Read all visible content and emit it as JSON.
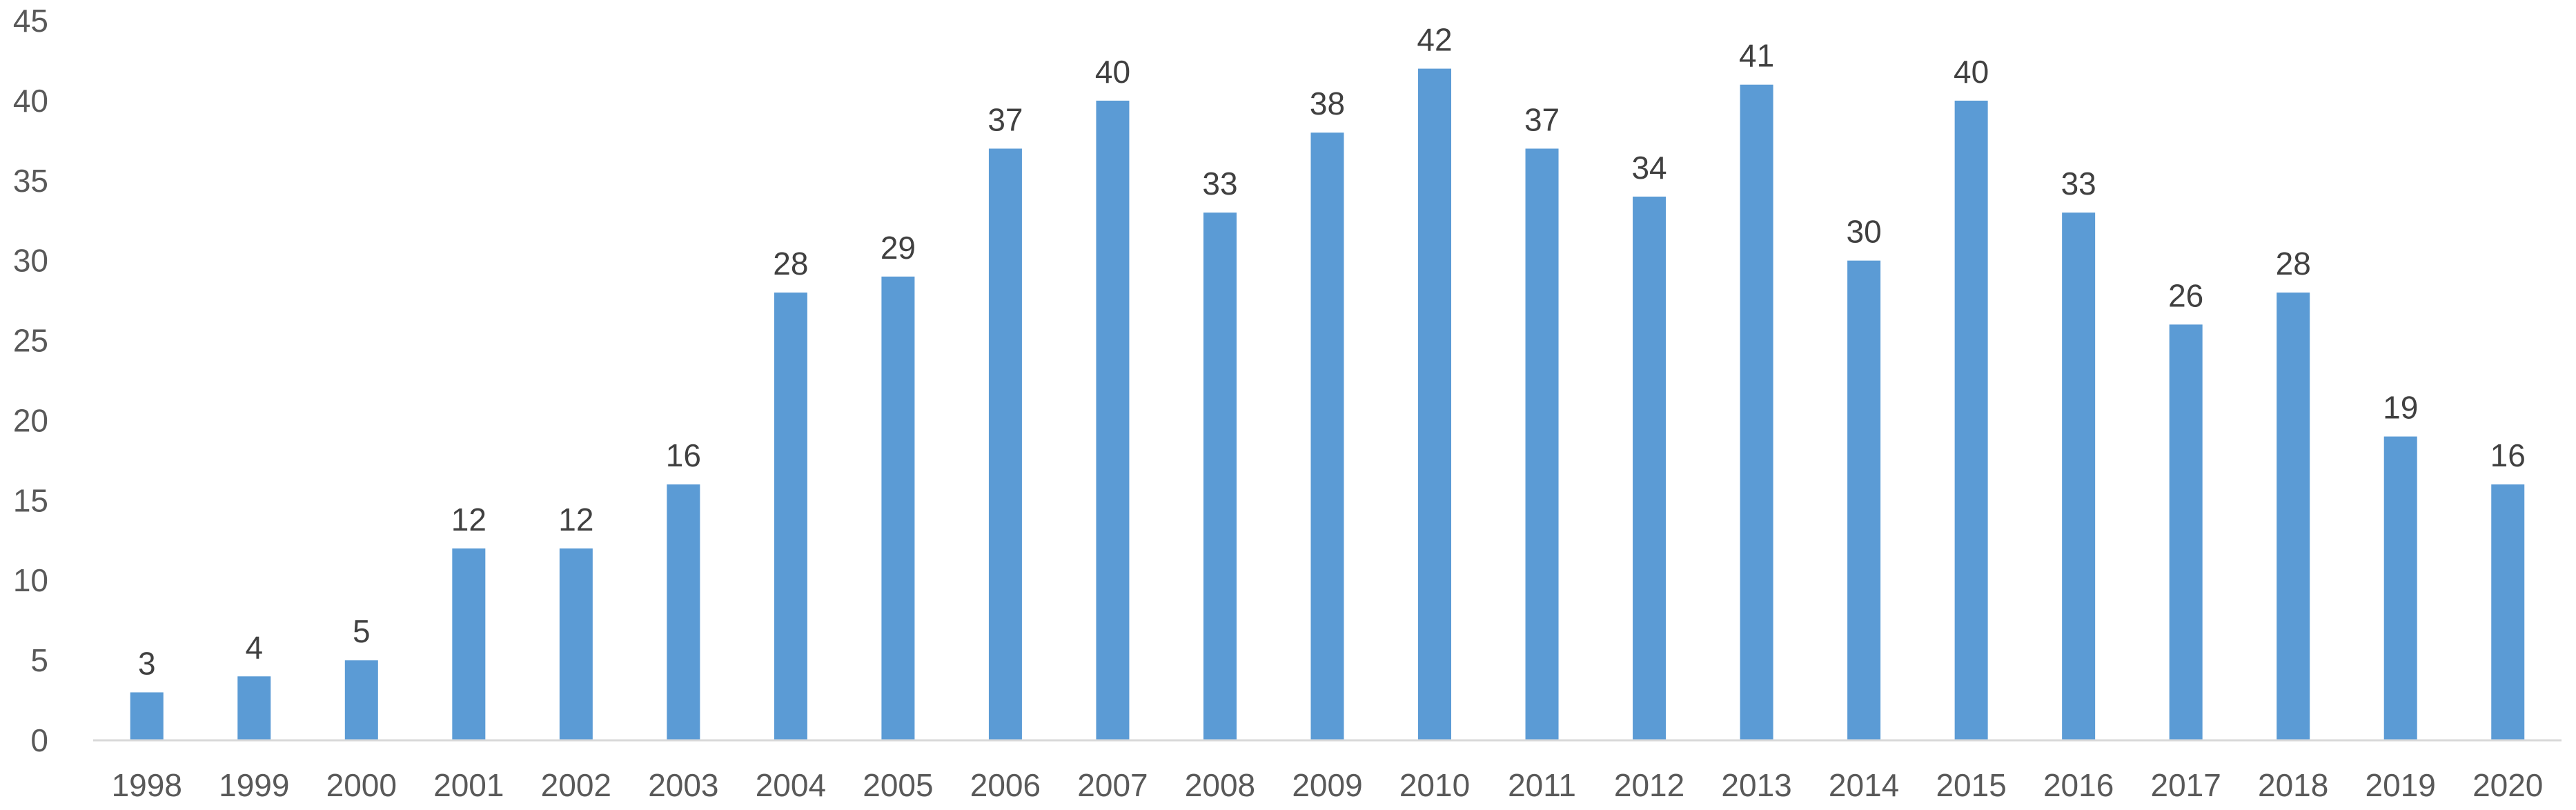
{
  "chart_data": {
    "type": "bar",
    "title": "",
    "xlabel": "",
    "ylabel": "",
    "categories": [
      "1998",
      "1999",
      "2000",
      "2001",
      "2002",
      "2003",
      "2004",
      "2005",
      "2006",
      "2007",
      "2008",
      "2009",
      "2010",
      "2011",
      "2012",
      "2013",
      "2014",
      "2015",
      "2016",
      "2017",
      "2018",
      "2019",
      "2020"
    ],
    "values": [
      3,
      4,
      5,
      12,
      12,
      16,
      28,
      29,
      37,
      40,
      33,
      38,
      42,
      37,
      34,
      41,
      30,
      40,
      33,
      26,
      28,
      19,
      16
    ],
    "ylim": [
      0,
      45
    ],
    "yticks": [
      0,
      5,
      10,
      15,
      20,
      25,
      30,
      35,
      40,
      45
    ],
    "grid": false,
    "legend": "none",
    "data_labels": true,
    "bar_color": "#5B9BD5",
    "axis_color": "#D9D9D9",
    "tick_color": "#595959",
    "label_color": "#404040"
  }
}
